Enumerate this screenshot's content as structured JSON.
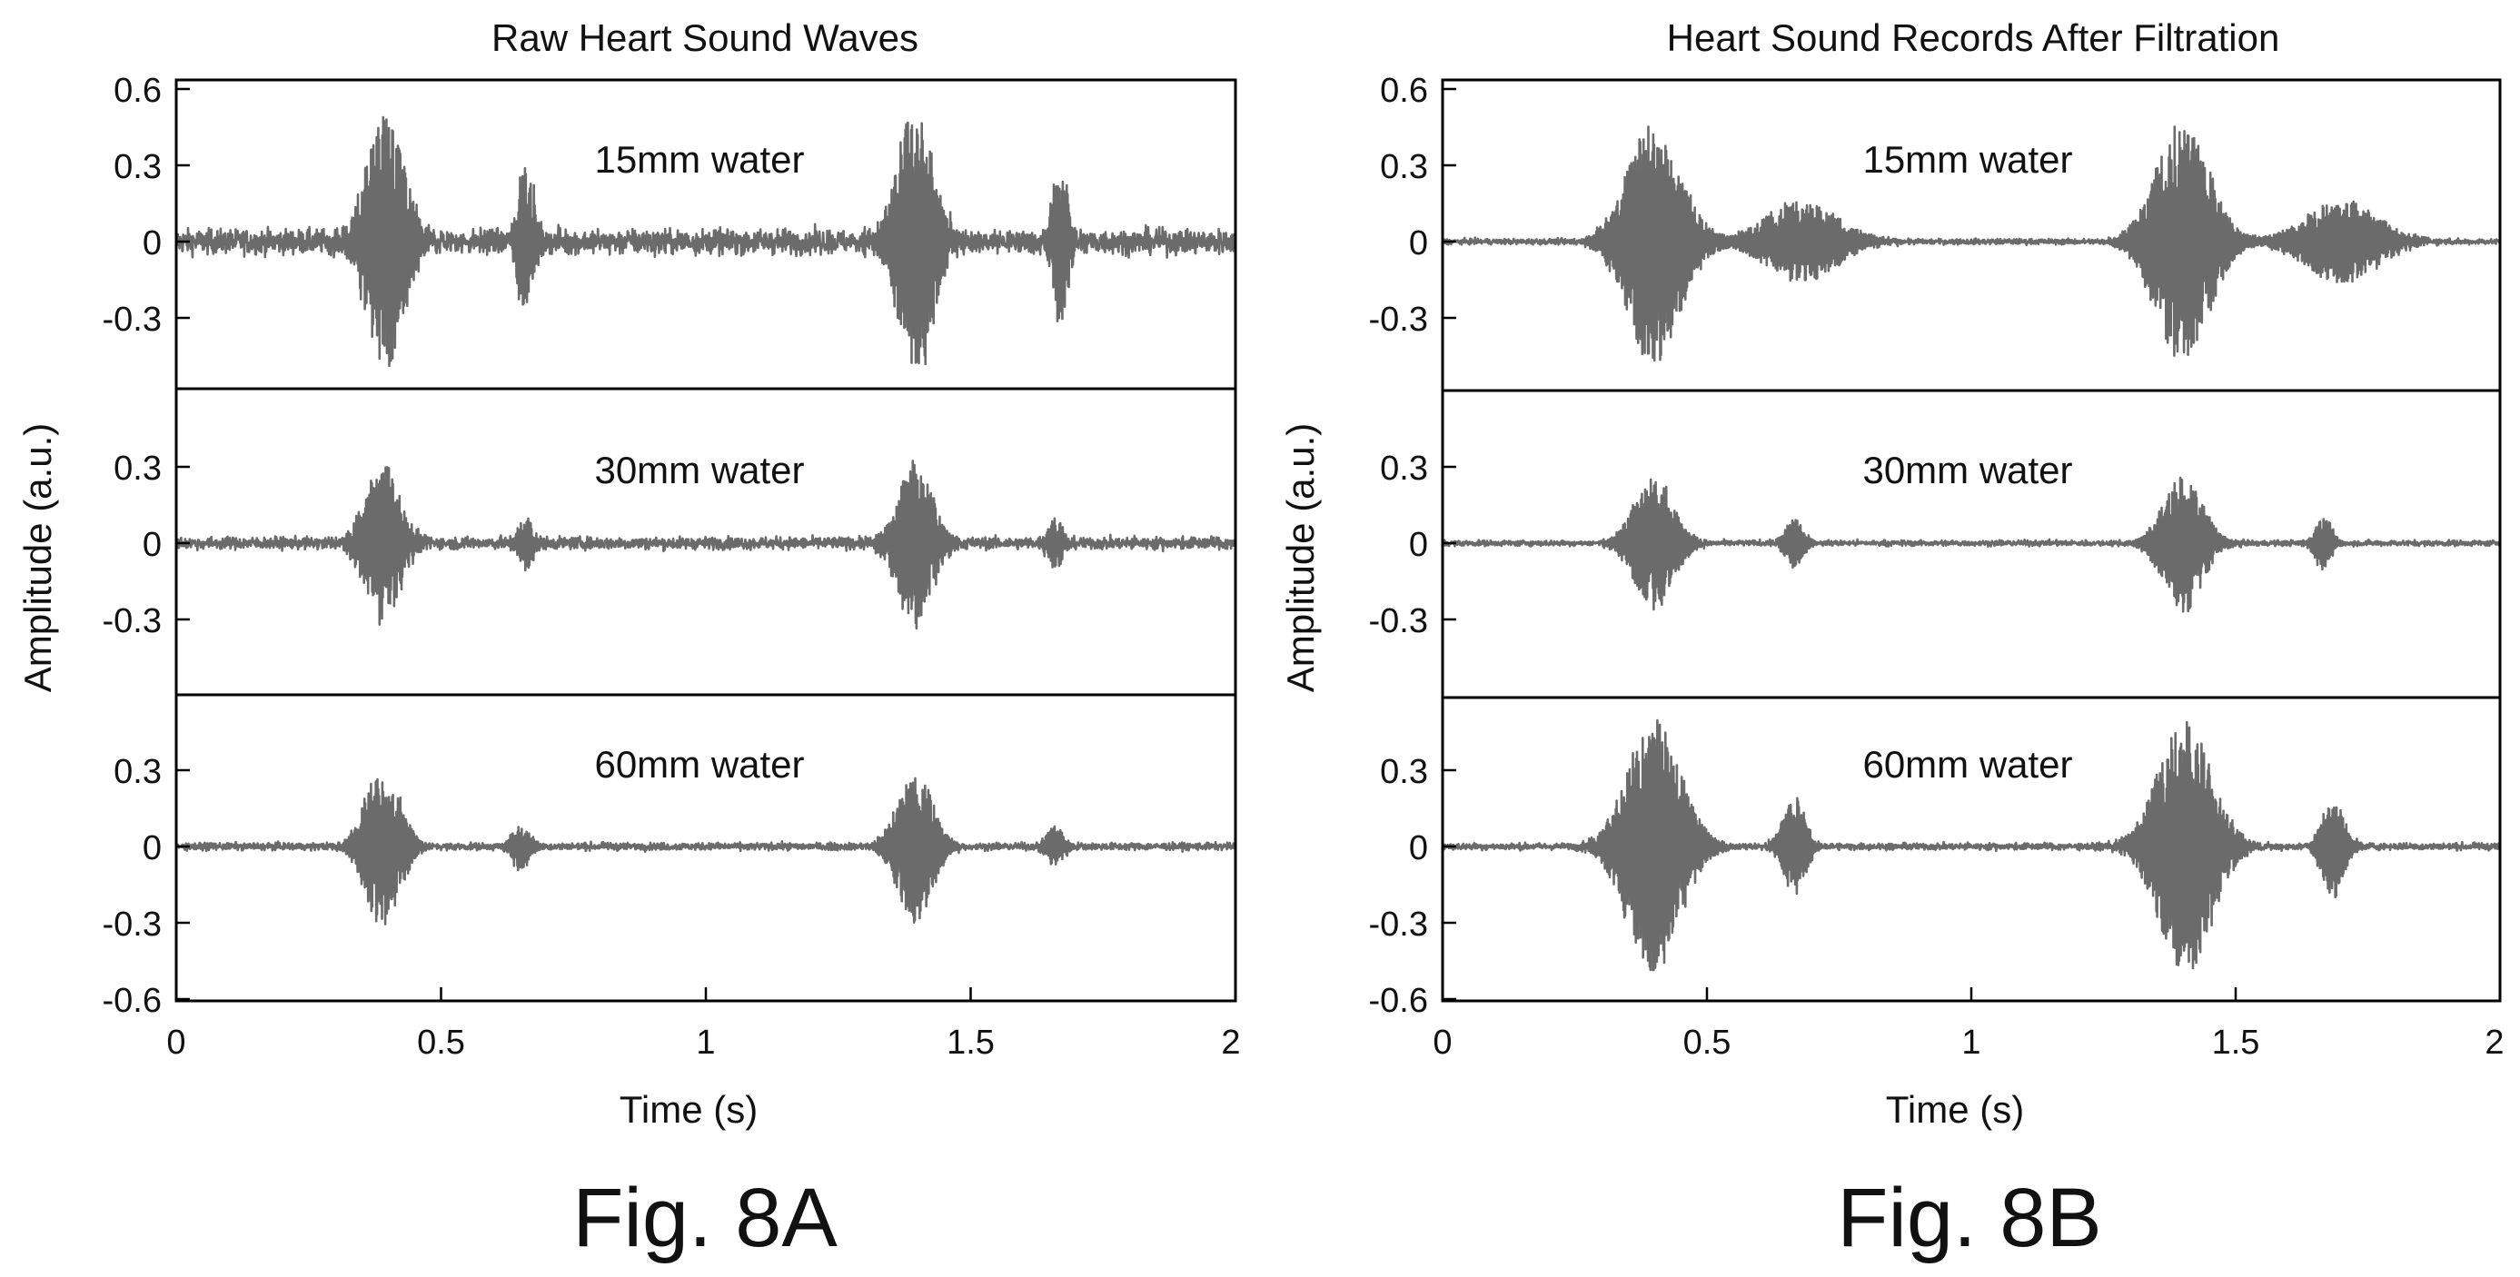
{
  "figures": [
    {
      "title": "Raw Heart Sound Waves",
      "label": "Fig. 8A"
    },
    {
      "title": "Heart Sound Records After Filtration",
      "label": "Fig. 8B"
    }
  ],
  "colors": {
    "trace": "#6b6b6b",
    "axis": "#000000",
    "background": "#ffffff"
  },
  "chart_data": [
    {
      "type": "line",
      "title": "Raw Heart Sound Waves",
      "xlabel": "Time (s)",
      "ylabel": "Amplitude (a.u.)",
      "xlim": [
        0,
        2
      ],
      "xticks": [
        "0",
        "0.5",
        "1",
        "1.5",
        "2"
      ],
      "ylim": [
        -0.6,
        0.6
      ],
      "grid": false,
      "panels": [
        {
          "label": "15mm water",
          "ylim": [
            -0.6,
            0.6
          ],
          "yticks": [
            "0.6",
            "0.3",
            "0",
            "-0.3"
          ],
          "noise": 0.045,
          "bursts": [
            {
              "t": 0.395,
              "dur": 0.075,
              "amp": 0.52
            },
            {
              "t": 0.66,
              "dur": 0.03,
              "amp": 0.32
            },
            {
              "t": 1.395,
              "dur": 0.075,
              "amp": 0.52
            },
            {
              "t": 1.67,
              "dur": 0.03,
              "amp": 0.32
            }
          ]
        },
        {
          "label": "30mm water",
          "ylim": [
            -0.6,
            0.6
          ],
          "yticks": [
            "0.3",
            "0",
            "-0.3"
          ],
          "noise": 0.022,
          "bursts": [
            {
              "t": 0.39,
              "dur": 0.07,
              "amp": 0.31
            },
            {
              "t": 0.66,
              "dur": 0.03,
              "amp": 0.1
            },
            {
              "t": 1.395,
              "dur": 0.07,
              "amp": 0.32
            },
            {
              "t": 1.66,
              "dur": 0.03,
              "amp": 0.1
            }
          ]
        },
        {
          "label": "60mm water",
          "ylim": [
            -0.6,
            0.6
          ],
          "yticks": [
            "0.3",
            "0",
            "-0.3",
            "-0.6"
          ],
          "noise": 0.013,
          "bursts": [
            {
              "t": 0.39,
              "dur": 0.07,
              "amp": 0.32
            },
            {
              "t": 0.65,
              "dur": 0.035,
              "amp": 0.09
            },
            {
              "t": 1.395,
              "dur": 0.07,
              "amp": 0.31
            },
            {
              "t": 1.66,
              "dur": 0.035,
              "amp": 0.08
            }
          ]
        }
      ]
    },
    {
      "type": "line",
      "title": "Heart Sound Records After Filtration",
      "xlabel": "Time (s)",
      "ylabel": "Amplitude (a.u.)",
      "xlim": [
        0,
        2
      ],
      "xticks": [
        "0",
        "0.5",
        "1",
        "1.5",
        "2"
      ],
      "ylim": [
        -0.6,
        0.6
      ],
      "grid": false,
      "panels": [
        {
          "label": "15mm water",
          "ylim": [
            -0.6,
            0.6
          ],
          "yticks": [
            "0.6",
            "0.3",
            "0",
            "-0.3"
          ],
          "noise": 0.01,
          "bursts": [
            {
              "t": 0.4,
              "dur": 0.11,
              "amp": 0.48
            },
            {
              "t": 0.68,
              "dur": 0.15,
              "amp": 0.16
            },
            {
              "t": 1.4,
              "dur": 0.11,
              "amp": 0.48
            },
            {
              "t": 1.7,
              "dur": 0.15,
              "amp": 0.16
            }
          ]
        },
        {
          "label": "30mm water",
          "ylim": [
            -0.6,
            0.6
          ],
          "yticks": [
            "0.3",
            "0",
            "-0.3"
          ],
          "noise": 0.01,
          "bursts": [
            {
              "t": 0.4,
              "dur": 0.08,
              "amp": 0.27
            },
            {
              "t": 0.665,
              "dur": 0.035,
              "amp": 0.1
            },
            {
              "t": 1.4,
              "dur": 0.08,
              "amp": 0.27
            },
            {
              "t": 1.665,
              "dur": 0.035,
              "amp": 0.1
            }
          ]
        },
        {
          "label": "60mm water",
          "ylim": [
            -0.6,
            0.6
          ],
          "yticks": [
            "0.3",
            "0",
            "-0.3",
            "-0.6"
          ],
          "noise": 0.012,
          "bursts": [
            {
              "t": 0.4,
              "dur": 0.11,
              "amp": 0.5
            },
            {
              "t": 0.665,
              "dur": 0.045,
              "amp": 0.2
            },
            {
              "t": 1.405,
              "dur": 0.11,
              "amp": 0.5
            },
            {
              "t": 1.685,
              "dur": 0.045,
              "amp": 0.2
            }
          ]
        }
      ]
    }
  ]
}
